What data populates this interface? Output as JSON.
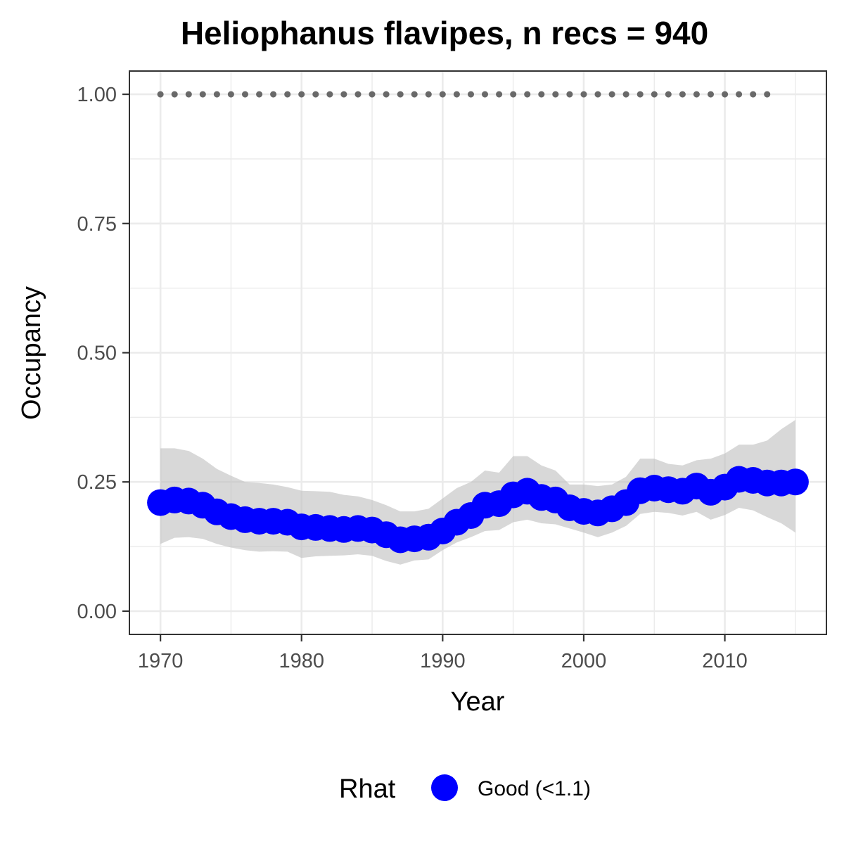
{
  "chart_data": {
    "type": "line",
    "title": "Heliophanus flavipes, n recs = 940",
    "xlabel": "Year",
    "ylabel": "Occupancy",
    "xlim": [
      1967.8,
      2017.2
    ],
    "ylim": [
      -0.045,
      1.045
    ],
    "x_ticks": [
      1970,
      1980,
      1990,
      2000,
      2010
    ],
    "x_tick_labels": [
      "1970",
      "1980",
      "1990",
      "2000",
      "2010"
    ],
    "y_ticks": [
      0,
      0.25,
      0.5,
      0.75,
      1.0
    ],
    "y_tick_labels": [
      "0.00",
      "0.25",
      "0.50",
      "0.75",
      "1.00"
    ],
    "grid": true,
    "legend": {
      "position": "bottom",
      "title": "Rhat",
      "entries": [
        {
          "label": "Good (<1.1)",
          "color": "#0000FF"
        }
      ]
    },
    "colors": {
      "mean": "#0000FF",
      "ribbon": "#BEBEBE",
      "reference": "#696969",
      "grid": "#EBEBEB",
      "panel_border": "#333333"
    },
    "series": [
      {
        "kind": "mean",
        "years": [
          1970,
          1971,
          1972,
          1973,
          1974,
          1975,
          1976,
          1977,
          1978,
          1979,
          1980,
          1981,
          1982,
          1983,
          1984,
          1985,
          1986,
          1987,
          1988,
          1989,
          1990,
          1991,
          1992,
          1993,
          1994,
          1995,
          1996,
          1997,
          1998,
          1999,
          2000,
          2001,
          2002,
          2003,
          2004,
          2005,
          2006,
          2007,
          2008,
          2009,
          2010,
          2011,
          2012,
          2013,
          2014,
          2015
        ],
        "values": [
          0.21,
          0.215,
          0.213,
          0.205,
          0.192,
          0.183,
          0.177,
          0.174,
          0.174,
          0.172,
          0.163,
          0.162,
          0.16,
          0.158,
          0.16,
          0.157,
          0.148,
          0.138,
          0.14,
          0.143,
          0.155,
          0.172,
          0.185,
          0.205,
          0.208,
          0.225,
          0.232,
          0.22,
          0.215,
          0.2,
          0.193,
          0.19,
          0.198,
          0.21,
          0.233,
          0.238,
          0.235,
          0.232,
          0.242,
          0.23,
          0.24,
          0.255,
          0.253,
          0.248,
          0.248,
          0.25
        ],
        "status": "Good (<1.1)"
      },
      {
        "kind": "credible_interval",
        "years": [
          1970,
          1971,
          1972,
          1973,
          1974,
          1975,
          1976,
          1977,
          1978,
          1979,
          1980,
          1981,
          1982,
          1983,
          1984,
          1985,
          1986,
          1987,
          1988,
          1989,
          1990,
          1991,
          1992,
          1993,
          1994,
          1995,
          1996,
          1997,
          1998,
          1999,
          2000,
          2001,
          2002,
          2003,
          2004,
          2005,
          2006,
          2007,
          2008,
          2009,
          2010,
          2011,
          2012,
          2013,
          2014,
          2015
        ],
        "lower": [
          0.13,
          0.142,
          0.143,
          0.14,
          0.13,
          0.123,
          0.118,
          0.115,
          0.116,
          0.115,
          0.103,
          0.106,
          0.107,
          0.108,
          0.11,
          0.107,
          0.097,
          0.09,
          0.098,
          0.1,
          0.118,
          0.133,
          0.143,
          0.155,
          0.157,
          0.172,
          0.177,
          0.17,
          0.168,
          0.16,
          0.152,
          0.143,
          0.152,
          0.165,
          0.188,
          0.192,
          0.19,
          0.185,
          0.192,
          0.177,
          0.186,
          0.2,
          0.195,
          0.182,
          0.17,
          0.152
        ],
        "upper": [
          0.315,
          0.315,
          0.31,
          0.295,
          0.275,
          0.262,
          0.25,
          0.248,
          0.245,
          0.24,
          0.233,
          0.232,
          0.231,
          0.225,
          0.222,
          0.215,
          0.205,
          0.193,
          0.193,
          0.198,
          0.218,
          0.238,
          0.25,
          0.272,
          0.268,
          0.3,
          0.3,
          0.282,
          0.272,
          0.245,
          0.245,
          0.242,
          0.245,
          0.26,
          0.295,
          0.295,
          0.285,
          0.282,
          0.292,
          0.295,
          0.305,
          0.322,
          0.322,
          0.33,
          0.352,
          0.37
        ]
      },
      {
        "kind": "reference",
        "years": [
          1970,
          1971,
          1972,
          1973,
          1974,
          1975,
          1976,
          1977,
          1978,
          1979,
          1980,
          1981,
          1982,
          1983,
          1984,
          1985,
          1986,
          1987,
          1988,
          1989,
          1990,
          1991,
          1992,
          1993,
          1994,
          1995,
          1996,
          1997,
          1998,
          1999,
          2000,
          2001,
          2002,
          2003,
          2004,
          2005,
          2006,
          2007,
          2008,
          2009,
          2010,
          2011,
          2012,
          2013
        ],
        "value": 1.0
      }
    ]
  }
}
